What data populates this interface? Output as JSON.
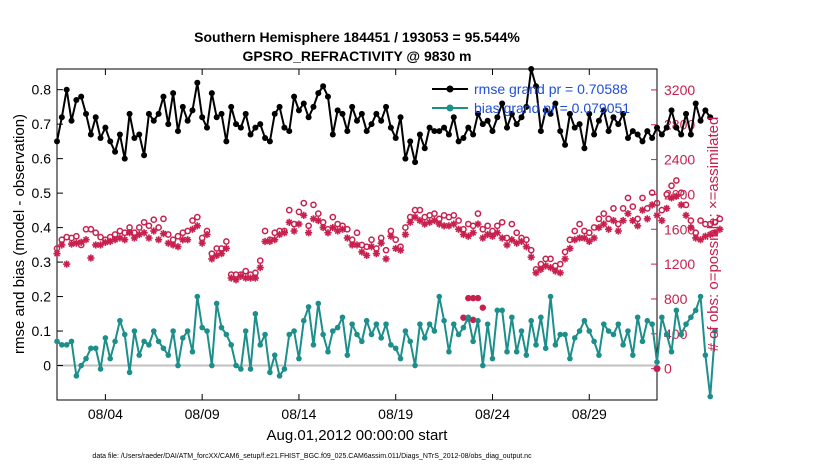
{
  "chart_data": {
    "type": "line",
    "title": "Southern Hemisphere 184451 / 193053 = 95.544%",
    "subtitle": "GPSRO_REFRACTIVITY @ 9830 m",
    "ylabel": "rmse and bias (model - observation)",
    "y2label": "# of obs: o=possible; ×=assimilated",
    "xlabel": "Aug.01,2012 00:00:00 start",
    "footnote": "data file: /Users/raeder/DAI/ATM_forcXX/CAM6_setup/f.e21.FHIST_BGC.f09_025.CAM6assim.011/Diags_NTrS_2012-08/obs_diag_output.nc",
    "xlim": [
      1.5,
      32.5
    ],
    "ylim": [
      -0.1,
      0.86
    ],
    "y2lim": [
      -360,
      3440
    ],
    "x_ticks": [
      4,
      9,
      14,
      19,
      24,
      29
    ],
    "x_tick_labels": [
      "08/04",
      "08/09",
      "08/14",
      "08/19",
      "08/24",
      "08/29"
    ],
    "y_ticks": [
      "0",
      "0.1",
      "0.2",
      "0.3",
      "0.4",
      "0.5",
      "0.6",
      "0.7",
      "0.8"
    ],
    "y2_ticks": [
      "0",
      "400",
      "800",
      "1200",
      "1600",
      "2000",
      "2400",
      "2800",
      "3200"
    ],
    "zero_line": true,
    "legend": {
      "placement": "top-right",
      "entries": [
        "rmse grand pr = 0.70588",
        "bias grand pr = 0.079051"
      ]
    },
    "series": [
      {
        "role": "rmse",
        "color": "#000000",
        "axis": "left",
        "start": 1.5,
        "step": 0.25,
        "values": [
          0.65,
          0.72,
          0.8,
          0.71,
          0.77,
          0.78,
          0.73,
          0.67,
          0.72,
          0.66,
          0.69,
          0.65,
          0.62,
          0.67,
          0.6,
          0.73,
          0.66,
          0.67,
          0.61,
          0.73,
          0.71,
          0.73,
          0.78,
          0.7,
          0.79,
          0.68,
          0.75,
          0.71,
          0.74,
          0.82,
          0.72,
          0.69,
          0.79,
          0.72,
          0.73,
          0.65,
          0.75,
          0.7,
          0.69,
          0.73,
          0.67,
          0.69,
          0.7,
          0.66,
          0.65,
          0.73,
          0.75,
          0.69,
          0.68,
          0.78,
          0.74,
          0.76,
          0.72,
          0.75,
          0.79,
          0.81,
          0.78,
          0.67,
          0.74,
          0.73,
          0.68,
          0.75,
          0.71,
          0.73,
          0.68,
          0.7,
          0.73,
          0.71,
          0.75,
          0.69,
          0.66,
          0.72,
          0.6,
          0.65,
          0.59,
          0.67,
          0.63,
          0.69,
          0.68,
          0.68,
          0.69,
          0.67,
          0.72,
          0.65,
          0.66,
          0.69,
          0.67,
          0.73,
          0.7,
          0.71,
          0.68,
          0.72,
          0.76,
          0.69,
          0.73,
          0.7,
          0.72,
          0.75,
          0.86,
          0.81,
          0.68,
          0.74,
          0.73,
          0.76,
          0.68,
          0.64,
          0.73,
          0.69,
          0.7,
          0.63,
          0.73,
          0.67,
          0.71,
          0.74,
          0.68,
          0.72,
          0.7,
          0.73,
          0.66,
          0.68,
          0.67,
          0.65,
          0.68,
          0.66,
          0.69,
          0.67,
          0.69,
          0.74,
          0.69,
          0.67,
          0.73,
          0.67,
          0.76,
          0.71,
          0.74,
          0.72
        ]
      },
      {
        "role": "bias",
        "color": "#1c8f8b",
        "axis": "left",
        "start": 1.5,
        "step": 0.25,
        "values": [
          0.07,
          0.06,
          0.06,
          0.07,
          -0.03,
          0.0,
          0.02,
          0.05,
          0.05,
          -0.01,
          0.08,
          0.02,
          0.07,
          0.13,
          0.09,
          -0.02,
          0.1,
          0.03,
          0.07,
          0.06,
          0.1,
          0.07,
          0.05,
          0.03,
          0.1,
          0.0,
          0.08,
          0.1,
          0.04,
          0.2,
          0.11,
          0.1,
          0.0,
          0.18,
          0.11,
          0.09,
          0.06,
          0.0,
          -0.01,
          0.1,
          -0.01,
          0.15,
          0.06,
          0.09,
          -0.02,
          0.03,
          -0.03,
          -0.01,
          0.09,
          0.1,
          0.02,
          0.13,
          0.17,
          0.06,
          0.18,
          0.09,
          0.04,
          0.1,
          0.11,
          0.14,
          0.03,
          0.12,
          0.09,
          0.07,
          0.13,
          0.09,
          0.12,
          0.08,
          0.12,
          0.06,
          0.05,
          0.02,
          0.1,
          0.07,
          0.0,
          0.12,
          0.08,
          0.12,
          0.1,
          0.2,
          0.13,
          0.04,
          0.12,
          0.09,
          0.11,
          0.14,
          0.07,
          0.13,
          0.0,
          0.12,
          0.02,
          0.16,
          0.16,
          0.04,
          0.14,
          0.04,
          0.1,
          0.03,
          0.13,
          0.06,
          0.14,
          0.05,
          0.2,
          0.06,
          0.09,
          0.09,
          0.02,
          0.08,
          0.1,
          0.13,
          0.1,
          0.07,
          0.03,
          0.12,
          0.1,
          0.09,
          0.12,
          0.06,
          0.1,
          0.03,
          0.14,
          0.07,
          0.13,
          0.12,
          0.01,
          0.14,
          0.09,
          0.04,
          0.16,
          0.09,
          0.12,
          0.14,
          0.16,
          0.2,
          0.03,
          -0.09,
          0.1
        ]
      },
      {
        "role": "obs_possible",
        "color": "#c8204e",
        "marker": "circle",
        "axis": "right",
        "start": 1.5,
        "step": 0.25,
        "values": [
          1380,
          1480,
          1510,
          1500,
          1520,
          1420,
          1600,
          1600,
          1560,
          1510,
          1480,
          1510,
          1540,
          1580,
          1560,
          1620,
          1560,
          1620,
          1680,
          1640,
          1710,
          1620,
          1720,
          1540,
          1480,
          1520,
          1560,
          1580,
          1700,
          1740,
          1500,
          1580,
          1320,
          1380,
          1380,
          1460,
          1080,
          1080,
          1080,
          1120,
          1080,
          1100,
          1240,
          1580,
          1480,
          1560,
          1580,
          1580,
          1820,
          1660,
          1800,
          1900,
          1640,
          1880,
          1780,
          1680,
          1600,
          1740,
          1660,
          1640,
          1600,
          1480,
          1560,
          1420,
          1400,
          1480,
          1380,
          1500,
          1360,
          1580,
          1480,
          1400,
          1620,
          1740,
          1820,
          1820,
          1740,
          1760,
          1780,
          1720,
          1760,
          1740,
          1760,
          1700,
          1600,
          1660,
          1640,
          1780,
          1600,
          1640,
          1580,
          1640,
          1680,
          1500,
          1660,
          1560,
          1500,
          1480,
          1360,
          1140,
          1200,
          1260,
          1260,
          1180,
          1200,
          1340,
          1480,
          1580,
          1660,
          1580,
          1560,
          1620,
          1720,
          1780,
          1720,
          1840,
          1660,
          1840,
          1960,
          1860,
          1720,
          1960,
          1840,
          2020,
          1900,
          1820,
          2000,
          2100,
          2160,
          2020,
          1880,
          1700,
          1560,
          1700,
          1660,
          1660,
          1680,
          1720
        ]
      },
      {
        "role": "obs_assimilated",
        "color": "#c8204e",
        "marker": "star",
        "axis": "right",
        "start": 1.5,
        "step": 0.25,
        "values": [
          1320,
          1420,
          1200,
          1430,
          1440,
          1450,
          1480,
          1270,
          1420,
          1420,
          1450,
          1460,
          1480,
          1500,
          1480,
          1560,
          1500,
          1540,
          1560,
          1500,
          1580,
          1480,
          1550,
          1440,
          1420,
          1400,
          1480,
          1480,
          1600,
          1640,
          1440,
          1540,
          1260,
          1300,
          1320,
          1380,
          1040,
          1020,
          1060,
          1040,
          1040,
          1040,
          1160,
          1460,
          1460,
          1480,
          1540,
          1560,
          1680,
          1580,
          1660,
          1760,
          1560,
          1720,
          1700,
          1620,
          1560,
          1620,
          1580,
          1600,
          1500,
          1420,
          1420,
          1340,
          1300,
          1400,
          1320,
          1440,
          1260,
          1520,
          1380,
          1360,
          1540,
          1680,
          1740,
          1700,
          1660,
          1680,
          1700,
          1660,
          1640,
          1640,
          1660,
          1600,
          1540,
          1520,
          1560,
          1660,
          1500,
          1540,
          1520,
          1560,
          1500,
          1420,
          1480,
          1440,
          1460,
          1400,
          1280,
          1100,
          1140,
          1180,
          1160,
          1120,
          1100,
          1260,
          1380,
          1480,
          1500,
          1500,
          1460,
          1500,
          1620,
          1660,
          1600,
          1700,
          1580,
          1700,
          1780,
          1700,
          1640,
          1820,
          1720,
          1880,
          1760,
          1700,
          1840,
          1960,
          1980,
          1880,
          1760,
          1620,
          1500,
          1480,
          1520,
          1540,
          1560,
          1600
        ]
      }
    ],
    "bias_wide_markers": [
      {
        "x": 22.75,
        "y2": 810
      },
      {
        "x": 23.0,
        "y2": 810
      },
      {
        "x": 23.25,
        "y2": 810
      }
    ],
    "bias_low_points": [
      {
        "x": 22.5,
        "y2": 585
      },
      {
        "x": 22.75,
        "y2": 575
      },
      {
        "x": 23.0,
        "y2": 560
      },
      {
        "x": 23.5,
        "y2": 700
      }
    ]
  }
}
